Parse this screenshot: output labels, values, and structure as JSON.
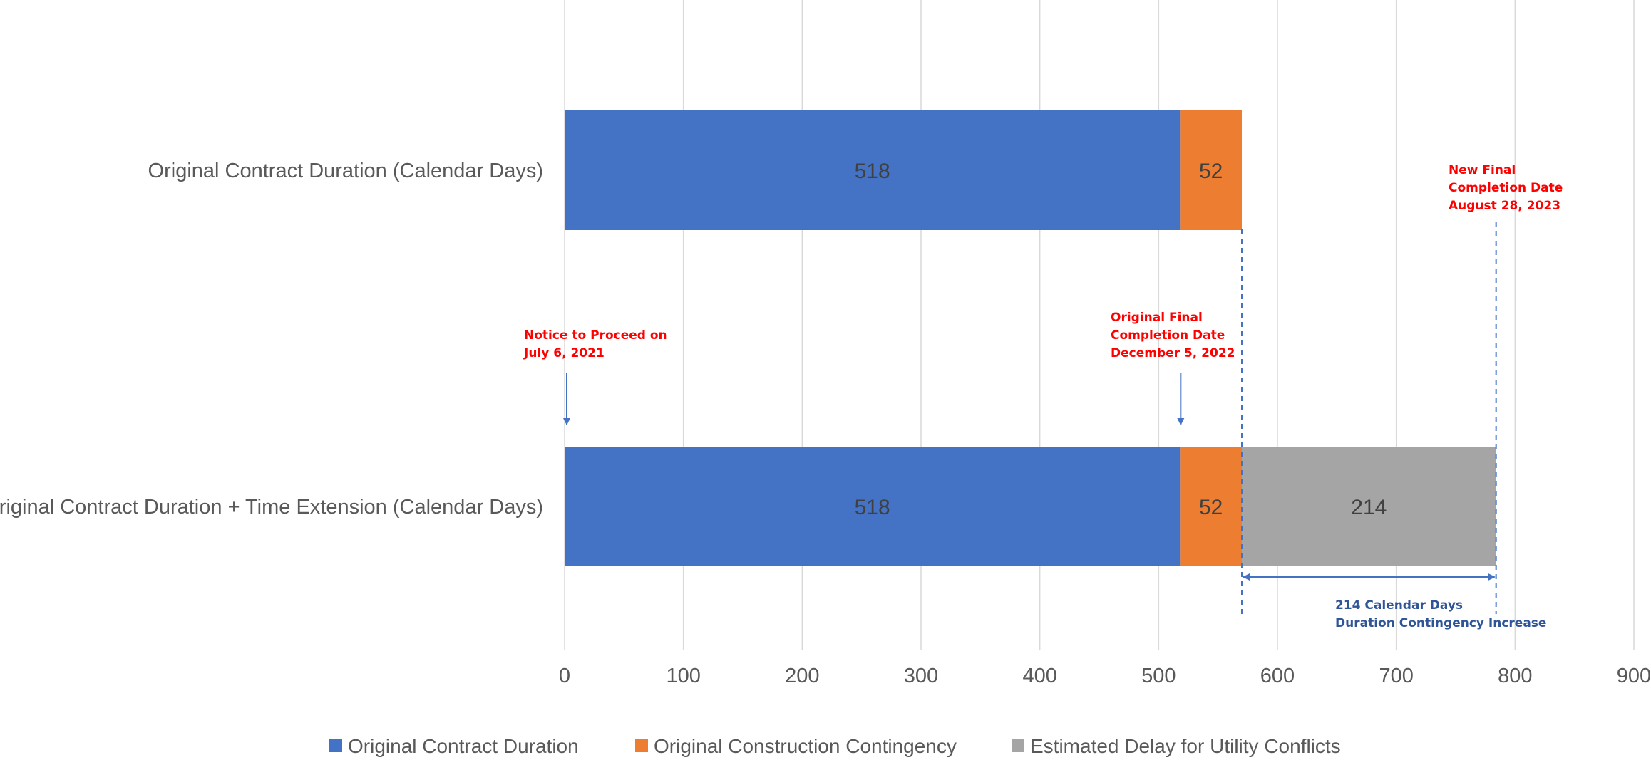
{
  "chart_data": {
    "type": "bar",
    "orientation": "horizontal",
    "stacked": true,
    "title": "",
    "xlabel": "",
    "ylabel": "",
    "xlim": [
      0,
      900
    ],
    "xticks": [
      0,
      100,
      200,
      300,
      400,
      500,
      600,
      700,
      800,
      900
    ],
    "grid": true,
    "legend_position": "bottom",
    "categories": [
      "Original Contract Duration (Calendar Days)",
      "Original Contract Duration + Time Extension (Calendar Days)"
    ],
    "series": [
      {
        "name": "Original Contract Duration",
        "color": "#4472c4",
        "values": [
          518,
          518
        ]
      },
      {
        "name": "Original Construction Contingency",
        "color": "#ed7d31",
        "values": [
          52,
          52
        ]
      },
      {
        "name": "Estimated Delay for Utility Conflicts",
        "color": "#a5a5a5",
        "values": [
          null,
          214
        ]
      }
    ],
    "annotations": [
      {
        "id": "ntp",
        "color": "#ff0000",
        "x": 0,
        "lines": [
          "Notice to Proceed on",
          "July 6, 2021"
        ]
      },
      {
        "id": "orig-completion",
        "color": "#ff0000",
        "x": 518,
        "lines": [
          "Original Final",
          "Completion Date",
          "December 5, 2022"
        ]
      },
      {
        "id": "new-completion",
        "color": "#ff0000",
        "x": 784,
        "lines": [
          "New Final",
          "Completion Date",
          "August 28, 2023"
        ]
      },
      {
        "id": "increase",
        "color": "#2f5597",
        "x_from": 570,
        "x_to": 784,
        "lines": [
          "214 Calendar Days",
          "Duration Contingency Increase"
        ]
      }
    ]
  }
}
